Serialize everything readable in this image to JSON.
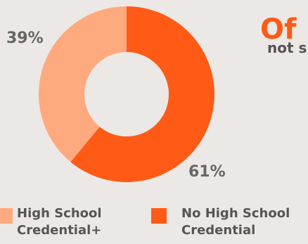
{
  "chart_data": {
    "type": "pie",
    "title": "Of",
    "subtitle": "not s",
    "categories": [
      "High School Credential+",
      "No High School Credential"
    ],
    "values": [
      39,
      61
    ],
    "value_labels": [
      "39%",
      "61%"
    ],
    "colors": [
      "#ffa97e",
      "#ff5a16"
    ],
    "donut": true,
    "legend_position": "bottom",
    "legend": [
      {
        "line1": "High School",
        "line2": "Credential+"
      },
      {
        "line1": "No High School",
        "line2": "Credential"
      }
    ]
  }
}
